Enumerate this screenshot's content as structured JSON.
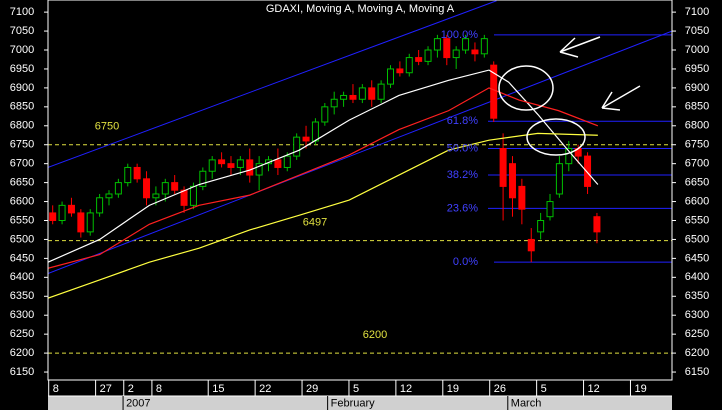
{
  "chart_data": {
    "type": "candlestick",
    "title": "GDAXI, Moving A, Moving A, Moving A",
    "xlim": [
      -0.5,
      66
    ],
    "ylim": [
      6129,
      7132
    ],
    "yticks": [
      7100,
      7050,
      7000,
      6950,
      6900,
      6850,
      6800,
      6750,
      6700,
      6650,
      6600,
      6550,
      6500,
      6450,
      6400,
      6350,
      6300,
      6250,
      6200,
      6150
    ],
    "xticks": [
      {
        "value": 0,
        "label": "8"
      },
      {
        "value": 5,
        "label": "27"
      },
      {
        "value": 8,
        "label": "2"
      },
      {
        "value": 11,
        "label": "8"
      },
      {
        "value": 17,
        "label": "15"
      },
      {
        "value": 22,
        "label": "22"
      },
      {
        "value": 27,
        "label": "29"
      },
      {
        "value": 32,
        "label": "5"
      },
      {
        "value": 37,
        "label": "12"
      },
      {
        "value": 42,
        "label": "19"
      },
      {
        "value": 47,
        "label": "26"
      },
      {
        "value": 52,
        "label": "5"
      },
      {
        "value": 57,
        "label": "12"
      },
      {
        "value": 62,
        "label": "19"
      }
    ],
    "xgroups": [
      {
        "value": 7.5,
        "label": "2007"
      },
      {
        "value": 29.3,
        "label": "February"
      },
      {
        "value": 48.5,
        "label": "March"
      }
    ],
    "candles": {
      "up_color": "#00c000",
      "down_color": "#ff0000",
      "open": [
        6570,
        6550,
        6590,
        6570,
        6520,
        6570,
        6610,
        6620,
        6650,
        6690,
        6660,
        6610,
        6620,
        6650,
        6630,
        6590,
        6640,
        6680,
        6710,
        6700,
        6690,
        6710,
        6670,
        6700,
        6710,
        6690,
        6720,
        6770,
        6760,
        6810,
        6850,
        6870,
        6880,
        6870,
        6900,
        6870,
        6910,
        6950,
        6940,
        6980,
        6970,
        7000,
        7030,
        6980,
        7000,
        7000,
        6990,
        6960,
        6740,
        6700,
        6640,
        6500,
        6520,
        6560,
        6620,
        6700,
        6740,
        6720,
        6560
      ],
      "high": [
        6590,
        6600,
        6610,
        6580,
        6580,
        6620,
        6630,
        6660,
        6700,
        6700,
        6680,
        6640,
        6660,
        6670,
        6640,
        6650,
        6690,
        6720,
        6730,
        6720,
        6720,
        6740,
        6720,
        6720,
        6740,
        6730,
        6780,
        6800,
        6820,
        6860,
        6890,
        6890,
        6910,
        6910,
        6920,
        6920,
        6960,
        6970,
        6990,
        7000,
        7010,
        7040,
        7040,
        7010,
        7040,
        7020,
        7040,
        6970,
        6780,
        6720,
        6660,
        6530,
        6570,
        6620,
        6720,
        6760,
        6750,
        6730,
        6570
      ],
      "low": [
        6540,
        6540,
        6560,
        6505,
        6510,
        6560,
        6590,
        6610,
        6640,
        6650,
        6590,
        6590,
        6600,
        6620,
        6570,
        6580,
        6630,
        6660,
        6690,
        6670,
        6670,
        6650,
        6630,
        6680,
        6670,
        6680,
        6710,
        6740,
        6750,
        6800,
        6830,
        6850,
        6860,
        6860,
        6850,
        6860,
        6900,
        6930,
        6930,
        6960,
        6960,
        6980,
        6960,
        6950,
        6990,
        6970,
        6980,
        6810,
        6550,
        6560,
        6540,
        6440,
        6500,
        6550,
        6610,
        6680,
        6700,
        6620,
        6490
      ],
      "close": [
        6550,
        6590,
        6570,
        6520,
        6570,
        6610,
        6620,
        6650,
        6690,
        6660,
        6610,
        6620,
        6650,
        6630,
        6590,
        6640,
        6680,
        6710,
        6700,
        6690,
        6710,
        6670,
        6700,
        6710,
        6690,
        6720,
        6770,
        6760,
        6810,
        6850,
        6870,
        6880,
        6870,
        6900,
        6870,
        6910,
        6950,
        6940,
        6980,
        6970,
        7000,
        7030,
        6980,
        7000,
        7030,
        6990,
        7030,
        6820,
        6640,
        6610,
        6580,
        6470,
        6550,
        6600,
        6700,
        6740,
        6720,
        6640,
        6520
      ]
    },
    "moving_averages": [
      {
        "color": "#ffffff",
        "x": [
          -0.5,
          5,
          10.3,
          15.6,
          21,
          26.3,
          31.6,
          36.9,
          42.2,
          46.5,
          48.6,
          51.7,
          54.9,
          58.1
        ],
        "values": [
          6440,
          6500,
          6590,
          6645,
          6683,
          6736,
          6815,
          6880,
          6920,
          6947,
          6915,
          6830,
          6736,
          6645
        ]
      },
      {
        "color": "#ff2020",
        "x": [
          -0.5,
          5,
          10.3,
          15.6,
          21,
          26.3,
          31.6,
          36.9,
          42.2,
          46.5,
          49.7,
          53.9,
          58.1
        ],
        "values": [
          6424,
          6460,
          6540,
          6590,
          6617,
          6670,
          6723,
          6790,
          6840,
          6900,
          6868,
          6840,
          6800
        ]
      },
      {
        "color": "#ffff40",
        "x": [
          -0.5,
          5,
          10.3,
          15.6,
          21,
          26.3,
          31.6,
          36.9,
          42.2,
          46.5,
          51.7,
          58.1
        ],
        "values": [
          6345,
          6393,
          6440,
          6477,
          6525,
          6564,
          6604,
          6670,
          6736,
          6762,
          6780,
          6775
        ]
      }
    ],
    "trendlines": [
      {
        "color": "#2020ff",
        "x": [
          -0.5,
          47.3
        ],
        "values": [
          6690,
          7130
        ]
      },
      {
        "color": "#2020ff",
        "x": [
          -0.5,
          66
        ],
        "values": [
          6410,
          7050
        ]
      }
    ],
    "levels": [
      {
        "value": 6750,
        "label": "6750"
      },
      {
        "value": 6497,
        "label": "6497"
      },
      {
        "value": 6200,
        "label": "6200"
      }
    ],
    "fib_levels": [
      {
        "value": 7040,
        "label": "100.0%"
      },
      {
        "value": 6812,
        "label": "61.8%"
      },
      {
        "value": 6740,
        "label": "50.0%"
      },
      {
        "value": 6670,
        "label": "38.2%"
      },
      {
        "value": 6582,
        "label": "23.6%"
      },
      {
        "value": 6440,
        "label": "0.0%"
      }
    ]
  }
}
